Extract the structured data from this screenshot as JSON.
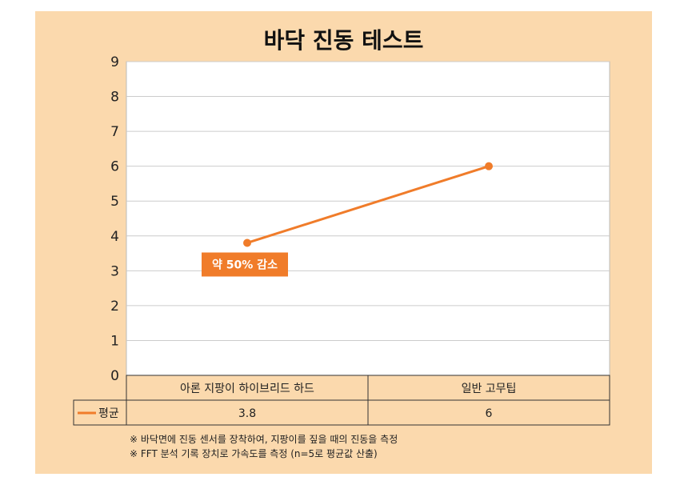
{
  "colors": {
    "background": "#fbd9ad",
    "plot": "#ffffff",
    "series": "#f07c2a",
    "grid": "#cccccc",
    "callout_bg": "#f07c2a",
    "callout_text": "#ffffff"
  },
  "chart_data": {
    "type": "line",
    "title": "바닥 진동 테스트",
    "categories": [
      "아론 지팡이 하이브리드 하드",
      "일반 고무팁"
    ],
    "series": [
      {
        "name": "평균",
        "values": [
          3.8,
          6
        ]
      }
    ],
    "ylim": [
      0,
      9
    ],
    "yticks": [
      0,
      1,
      2,
      3,
      4,
      5,
      6,
      7,
      8,
      9
    ],
    "grid": true,
    "legend": "data table",
    "data_table": {
      "row_label": "평균",
      "cells": [
        "3.8",
        "6"
      ]
    },
    "annotations": [
      {
        "text": "약 50% 감소",
        "category_index": 0
      }
    ]
  },
  "notes": [
    "※ 바닥면에 진동 센서를 장착하여, 지팡이를 짚을 때의 진동을 측정",
    "※ FFT 분석 기록 장치로 가속도를 측정 (n=5로 평균값 산출)"
  ]
}
